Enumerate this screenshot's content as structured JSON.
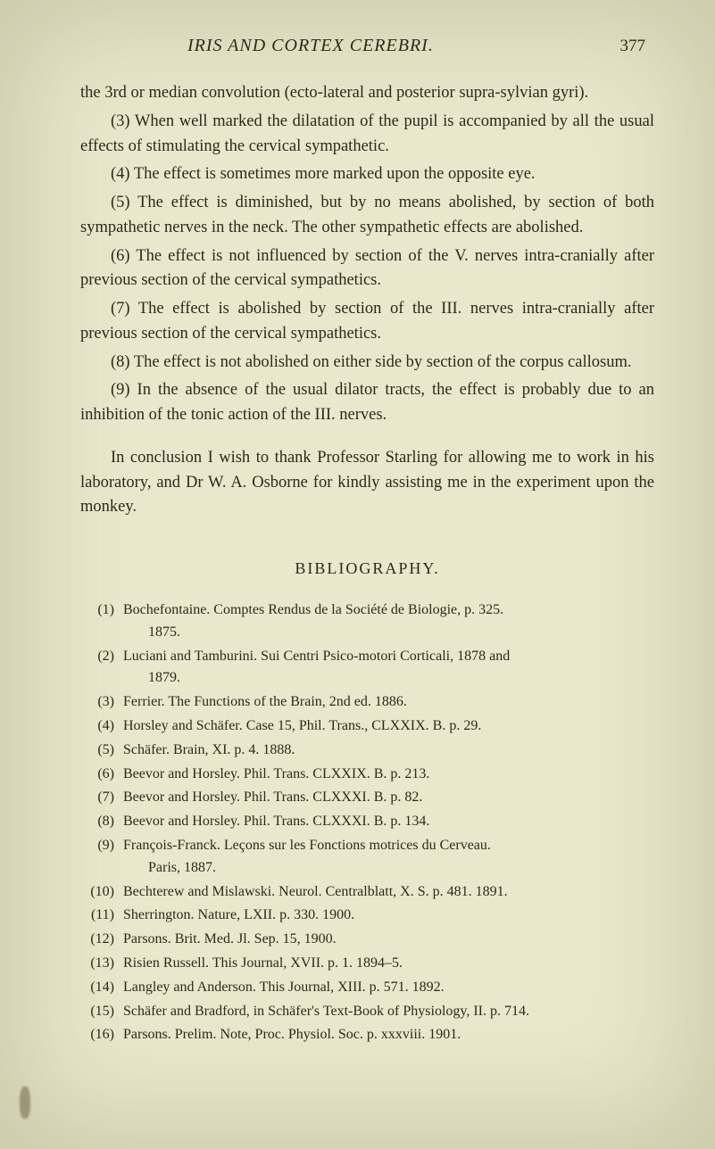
{
  "page": {
    "running_title": "IRIS AND CORTEX CEREBRI.",
    "number": "377"
  },
  "body": {
    "p_intro": "the 3rd or median convolution (ecto-lateral and posterior supra-sylvian gyri).",
    "p3": "(3) When well marked the dilatation of the pupil is accompanied by all the usual effects of stimulating the cervical sympathetic.",
    "p4": "(4) The effect is sometimes more marked upon the opposite eye.",
    "p5": "(5) The effect is diminished, but by no means abolished, by section of both sympathetic nerves in the neck. The other sympathetic effects are abolished.",
    "p6": "(6) The effect is not influenced by section of the V. nerves intra-cranially after previous section of the cervical sympathetics.",
    "p7": "(7) The effect is abolished by section of the III. nerves intra-cranially after previous section of the cervical sympathetics.",
    "p8": "(8) The effect is not abolished on either side by section of the corpus callosum.",
    "p9": "(9) In the absence of the usual dilator tracts, the effect is probably due to an inhibition of the tonic action of the III. nerves.",
    "p_concl": "In conclusion I wish to thank Professor Starling for allowing me to work in his laboratory, and Dr W. A. Osborne for kindly assisting me in the experiment upon the monkey."
  },
  "bibliography": {
    "heading": "BIBLIOGRAPHY.",
    "items": [
      {
        "n": "(1)",
        "line1": "Bochefontaine.  Comptes Rendus de la Société de Biologie, p. 325.",
        "line2": "1875."
      },
      {
        "n": "(2)",
        "line1": "Luciani and Tamburini.  Sui Centri Psico-motori Corticali, 1878 and",
        "line2": "1879."
      },
      {
        "n": "(3)",
        "line1": "Ferrier.  The Functions of the Brain, 2nd ed.  1886."
      },
      {
        "n": "(4)",
        "line1": "Horsley and Schäfer.  Case 15, Phil. Trans., CLXXIX. B. p. 29."
      },
      {
        "n": "(5)",
        "line1": "Schäfer.  Brain, XI. p. 4.  1888."
      },
      {
        "n": "(6)",
        "line1": "Beevor and Horsley.  Phil. Trans. CLXXIX. B. p. 213."
      },
      {
        "n": "(7)",
        "line1": "Beevor and Horsley.  Phil. Trans. CLXXXI. B. p. 82."
      },
      {
        "n": "(8)",
        "line1": "Beevor and Horsley.  Phil. Trans. CLXXXI. B. p. 134."
      },
      {
        "n": "(9)",
        "line1": "François-Franck.  Leçons sur les Fonctions motrices du Cerveau.",
        "line2": "Paris, 1887."
      },
      {
        "n": "(10)",
        "line1": "Bechterew and Mislawski.  Neurol. Centralblatt, X. S. p. 481.  1891."
      },
      {
        "n": "(11)",
        "line1": "Sherrington.  Nature, LXII. p. 330.  1900."
      },
      {
        "n": "(12)",
        "line1": "Parsons.  Brit. Med. Jl. Sep. 15, 1900."
      },
      {
        "n": "(13)",
        "line1": "Risien Russell.  This Journal, XVII. p. 1.  1894–5."
      },
      {
        "n": "(14)",
        "line1": "Langley and Anderson.  This Journal, XIII. p. 571.  1892."
      },
      {
        "n": "(15)",
        "line1": "Schäfer and Bradford, in Schäfer's Text-Book of Physiology, II. p. 714."
      },
      {
        "n": "(16)",
        "line1": "Parsons.  Prelim. Note, Proc. Physiol. Soc. p. xxxviii.  1901."
      }
    ]
  },
  "style": {
    "background_color": "#eae8cc",
    "text_color": "#2a2a1e",
    "body_fontsize": 18.5,
    "bib_fontsize": 16,
    "heading_letterspacing": 2
  }
}
